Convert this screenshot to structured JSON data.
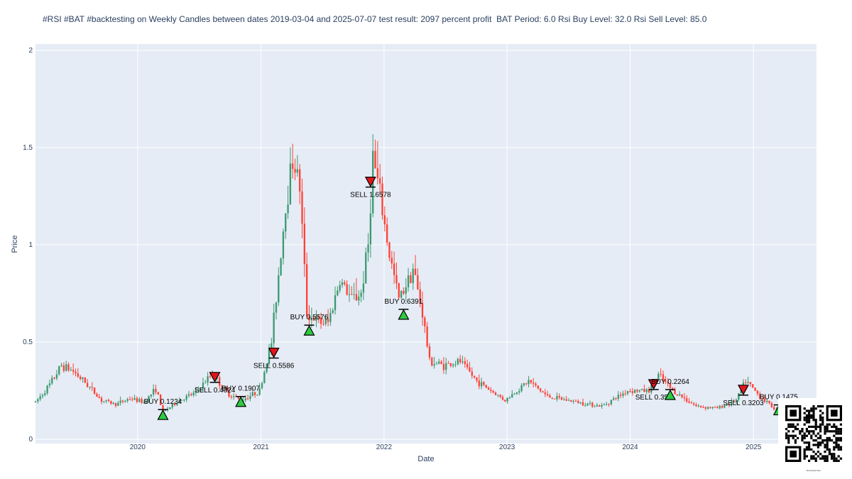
{
  "colors": {
    "background": "#ffffff",
    "plot_bg": "#e5ecf6",
    "grid": "#ffffff",
    "up": "#3d9970",
    "down": "#ff4136",
    "buy_marker": "#2ecc40",
    "sell_marker": "#e0161b",
    "text": "#2a3f5f"
  },
  "chart_data": {
    "type": "candlestick",
    "title": "#RSI #BAT #backtesting on Weekly Candles between dates 2019-03-04 and 2025-07-07 test result: 2097 percent profit  BAT Period: 6.0 Rsi Buy Level: 32.0 Rsi Sell Level: 85.0",
    "xlabel": "Date",
    "ylabel": "Price",
    "xlim": [
      "2019-03-04",
      "2025-07-07"
    ],
    "ylim": [
      0,
      2
    ],
    "x_ticks": [
      "2020",
      "2021",
      "2022",
      "2023",
      "2024",
      "2025"
    ],
    "y_ticks": [
      "0",
      "0.5",
      "1",
      "1.5",
      "2"
    ],
    "grid": true,
    "series_anchor_points": [
      [
        "2019-03-04",
        0.19
      ],
      [
        "2019-04-15",
        0.28
      ],
      [
        "2019-05-20",
        0.38
      ],
      [
        "2019-06-24",
        0.35
      ],
      [
        "2019-08-05",
        0.28
      ],
      [
        "2019-09-16",
        0.2
      ],
      [
        "2019-10-28",
        0.18
      ],
      [
        "2019-12-09",
        0.21
      ],
      [
        "2020-01-20",
        0.19
      ],
      [
        "2020-02-24",
        0.26
      ],
      [
        "2020-03-16",
        0.14
      ],
      [
        "2020-05-04",
        0.2
      ],
      [
        "2020-06-22",
        0.24
      ],
      [
        "2020-08-10",
        0.34
      ],
      [
        "2020-09-21",
        0.24
      ],
      [
        "2020-11-02",
        0.2
      ],
      [
        "2020-12-28",
        0.25
      ],
      [
        "2021-02-01",
        0.5
      ],
      [
        "2021-02-22",
        0.85
      ],
      [
        "2021-03-15",
        1.2
      ],
      [
        "2021-04-05",
        1.45
      ],
      [
        "2021-04-26",
        1.3
      ],
      [
        "2021-05-17",
        0.65
      ],
      [
        "2021-06-21",
        0.6
      ],
      [
        "2021-07-19",
        0.6
      ],
      [
        "2021-08-23",
        0.82
      ],
      [
        "2021-09-27",
        0.72
      ],
      [
        "2021-10-25",
        0.75
      ],
      [
        "2021-11-15",
        1.0
      ],
      [
        "2021-11-29",
        1.45
      ],
      [
        "2021-12-20",
        1.25
      ],
      [
        "2022-01-17",
        0.95
      ],
      [
        "2022-02-14",
        0.72
      ],
      [
        "2022-03-28",
        0.88
      ],
      [
        "2022-04-25",
        0.65
      ],
      [
        "2022-05-16",
        0.4
      ],
      [
        "2022-06-27",
        0.38
      ],
      [
        "2022-08-15",
        0.4
      ],
      [
        "2022-10-03",
        0.3
      ],
      [
        "2022-12-26",
        0.2
      ],
      [
        "2023-03-06",
        0.3
      ],
      [
        "2023-05-01",
        0.22
      ],
      [
        "2023-07-31",
        0.19
      ],
      [
        "2023-10-09",
        0.17
      ],
      [
        "2023-12-25",
        0.25
      ],
      [
        "2024-02-26",
        0.25
      ],
      [
        "2024-03-25",
        0.33
      ],
      [
        "2024-05-06",
        0.25
      ],
      [
        "2024-07-15",
        0.17
      ],
      [
        "2024-09-16",
        0.16
      ],
      [
        "2024-11-11",
        0.2
      ],
      [
        "2024-12-09",
        0.3
      ],
      [
        "2025-01-20",
        0.22
      ],
      [
        "2025-03-10",
        0.15
      ],
      [
        "2025-04-14",
        0.14
      ]
    ],
    "trades": [
      {
        "type": "BUY",
        "date": "2020-03-16",
        "price": 0.1234,
        "label": "BUY 0.1234"
      },
      {
        "type": "SELL",
        "date": "2020-08-17",
        "price": 0.4024,
        "label": "SELL 0.4024"
      },
      {
        "type": "BUY",
        "date": "2020-11-02",
        "price": 0.1907,
        "label": "BUY 0.1907"
      },
      {
        "type": "SELL",
        "date": "2021-02-08",
        "price": 0.5586,
        "label": "SELL 0.5586"
      },
      {
        "type": "BUY",
        "date": "2021-05-24",
        "price": 0.5576,
        "label": "BUY 0.5576"
      },
      {
        "type": "SELL",
        "date": "2021-11-22",
        "price": 1.6578,
        "label": "SELL 1.6578"
      },
      {
        "type": "BUY",
        "date": "2022-02-28",
        "price": 0.6391,
        "label": "BUY 0.6391"
      },
      {
        "type": "SELL",
        "date": "2024-03-11",
        "price": 0.356,
        "label": "SELL 0.356"
      },
      {
        "type": "BUY",
        "date": "2024-04-29",
        "price": 0.2264,
        "label": "BUY 0.2264"
      },
      {
        "type": "SELL",
        "date": "2024-12-02",
        "price": 0.3203,
        "label": "SELL 0.3203"
      },
      {
        "type": "BUY",
        "date": "2025-03-17",
        "price": 0.1475,
        "label": "BUY 0.1475"
      }
    ]
  },
  "qr": {
    "caption": "Download here"
  }
}
